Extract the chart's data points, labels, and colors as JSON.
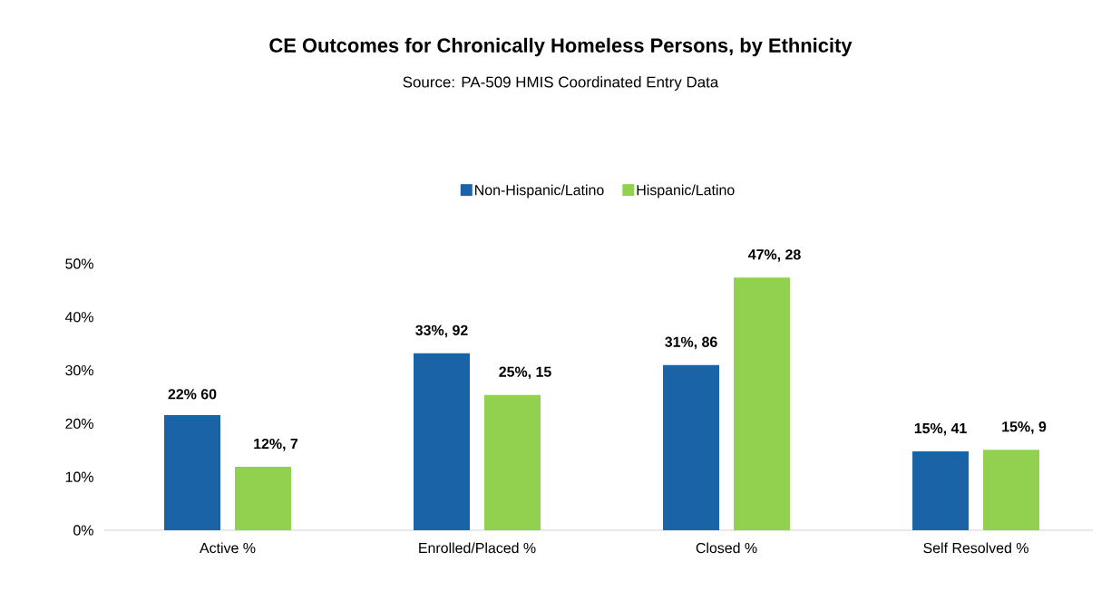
{
  "chart_data": {
    "type": "bar",
    "title": "CE Outcomes for Chronically Homeless Persons, by Ethnicity",
    "subtitle": "Source: PA-509 HMIS Coordinated Entry Data",
    "categories": [
      "Active %",
      "Enrolled/Placed %",
      "Closed %",
      "Self Resolved %"
    ],
    "series": [
      {
        "name": "Non-Hispanic/Latino",
        "color": "#1a63a7",
        "values": [
          21.6,
          33.2,
          31.0,
          14.8
        ],
        "value_labels": [
          "22% 60",
          "33%, 92",
          "31%, 86",
          "15%, 41"
        ]
      },
      {
        "name": "Hispanic/Latino",
        "color": "#92d050",
        "values": [
          11.9,
          25.4,
          47.4,
          15.1
        ],
        "value_labels": [
          "12%, 7",
          "25%, 15",
          "47%, 28",
          "15%, 9"
        ]
      }
    ],
    "ylim": [
      0,
      50
    ],
    "yticks": [
      {
        "value": 0,
        "label": "0%"
      },
      {
        "value": 10,
        "label": "10%"
      },
      {
        "value": 20,
        "label": "20%"
      },
      {
        "value": 30,
        "label": "30%"
      },
      {
        "value": 40,
        "label": "40%"
      },
      {
        "value": 50,
        "label": "50%"
      }
    ],
    "legend": "top"
  }
}
